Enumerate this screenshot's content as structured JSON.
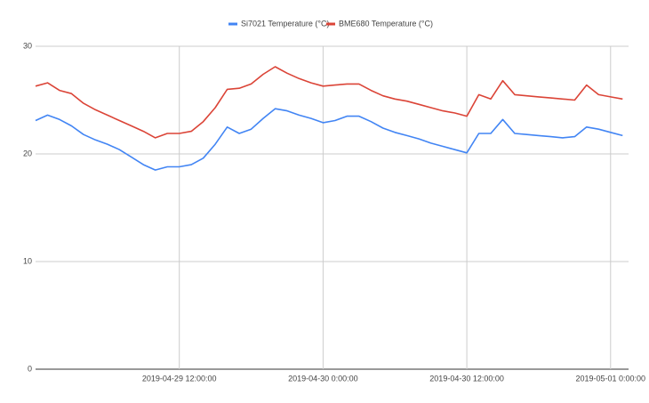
{
  "chart_data": {
    "type": "line",
    "x": [
      "2019-04-29 00:00:00",
      "2019-04-29 01:00:00",
      "2019-04-29 02:00:00",
      "2019-04-29 03:00:00",
      "2019-04-29 04:00:00",
      "2019-04-29 05:00:00",
      "2019-04-29 06:00:00",
      "2019-04-29 07:00:00",
      "2019-04-29 08:00:00",
      "2019-04-29 09:00:00",
      "2019-04-29 10:00:00",
      "2019-04-29 11:00:00",
      "2019-04-29 12:00:00",
      "2019-04-29 13:00:00",
      "2019-04-29 14:00:00",
      "2019-04-29 15:00:00",
      "2019-04-29 16:00:00",
      "2019-04-29 17:00:00",
      "2019-04-29 18:00:00",
      "2019-04-29 19:00:00",
      "2019-04-29 20:00:00",
      "2019-04-29 21:00:00",
      "2019-04-29 22:00:00",
      "2019-04-29 23:00:00",
      "2019-04-30 00:00:00",
      "2019-04-30 01:00:00",
      "2019-04-30 02:00:00",
      "2019-04-30 03:00:00",
      "2019-04-30 04:00:00",
      "2019-04-30 05:00:00",
      "2019-04-30 06:00:00",
      "2019-04-30 07:00:00",
      "2019-04-30 08:00:00",
      "2019-04-30 09:00:00",
      "2019-04-30 10:00:00",
      "2019-04-30 11:00:00",
      "2019-04-30 12:00:00",
      "2019-04-30 13:00:00",
      "2019-04-30 14:00:00",
      "2019-04-30 15:00:00",
      "2019-04-30 16:00:00",
      "2019-04-30 17:00:00",
      "2019-04-30 18:00:00",
      "2019-04-30 19:00:00",
      "2019-04-30 20:00:00",
      "2019-04-30 21:00:00",
      "2019-04-30 22:00:00",
      "2019-04-30 23:00:00",
      "2019-05-01 00:00:00",
      "2019-05-01 01:00:00"
    ],
    "series": [
      {
        "name": "Si7021 Temperature (°C)",
        "color": "#4285f4",
        "values": [
          23.1,
          23.6,
          23.2,
          22.6,
          21.8,
          21.3,
          20.9,
          20.4,
          19.7,
          19.0,
          18.5,
          18.8,
          18.8,
          19.0,
          19.6,
          20.9,
          22.5,
          21.9,
          22.3,
          23.3,
          24.2,
          24.0,
          23.6,
          23.3,
          22.9,
          23.1,
          23.5,
          23.5,
          23.0,
          22.4,
          22.0,
          21.7,
          21.4,
          21.0,
          20.7,
          20.4,
          20.1,
          21.9,
          21.9,
          23.2,
          21.9,
          21.8,
          21.7,
          21.6,
          21.5,
          21.6,
          22.5,
          22.3,
          22.0,
          21.7
        ]
      },
      {
        "name": "BME680 Temperature (°C)",
        "color": "#db4437",
        "values": [
          26.3,
          26.6,
          25.9,
          25.6,
          24.7,
          24.1,
          23.6,
          23.1,
          22.6,
          22.1,
          21.5,
          21.9,
          21.9,
          22.1,
          23.0,
          24.3,
          26.0,
          26.1,
          26.5,
          27.4,
          28.1,
          27.5,
          27.0,
          26.6,
          26.3,
          26.4,
          26.5,
          26.5,
          25.9,
          25.4,
          25.1,
          24.9,
          24.6,
          24.3,
          24.0,
          23.8,
          23.5,
          25.5,
          25.1,
          26.8,
          25.5,
          25.4,
          25.3,
          25.2,
          25.1,
          25.0,
          26.4,
          25.5,
          25.3,
          25.1
        ]
      }
    ],
    "xlim": [
      "2019-04-29 00:00:00",
      "2019-05-01 01:30:00"
    ],
    "xticks": [
      "2019-04-29 12:00:00",
      "2019-04-30 0:00:00",
      "2019-04-30 12:00:00",
      "2019-05-01 0:00:00"
    ],
    "ylim": [
      0,
      30
    ],
    "yticks": [
      0,
      10,
      20,
      30
    ],
    "grid": true,
    "legend": "top"
  }
}
